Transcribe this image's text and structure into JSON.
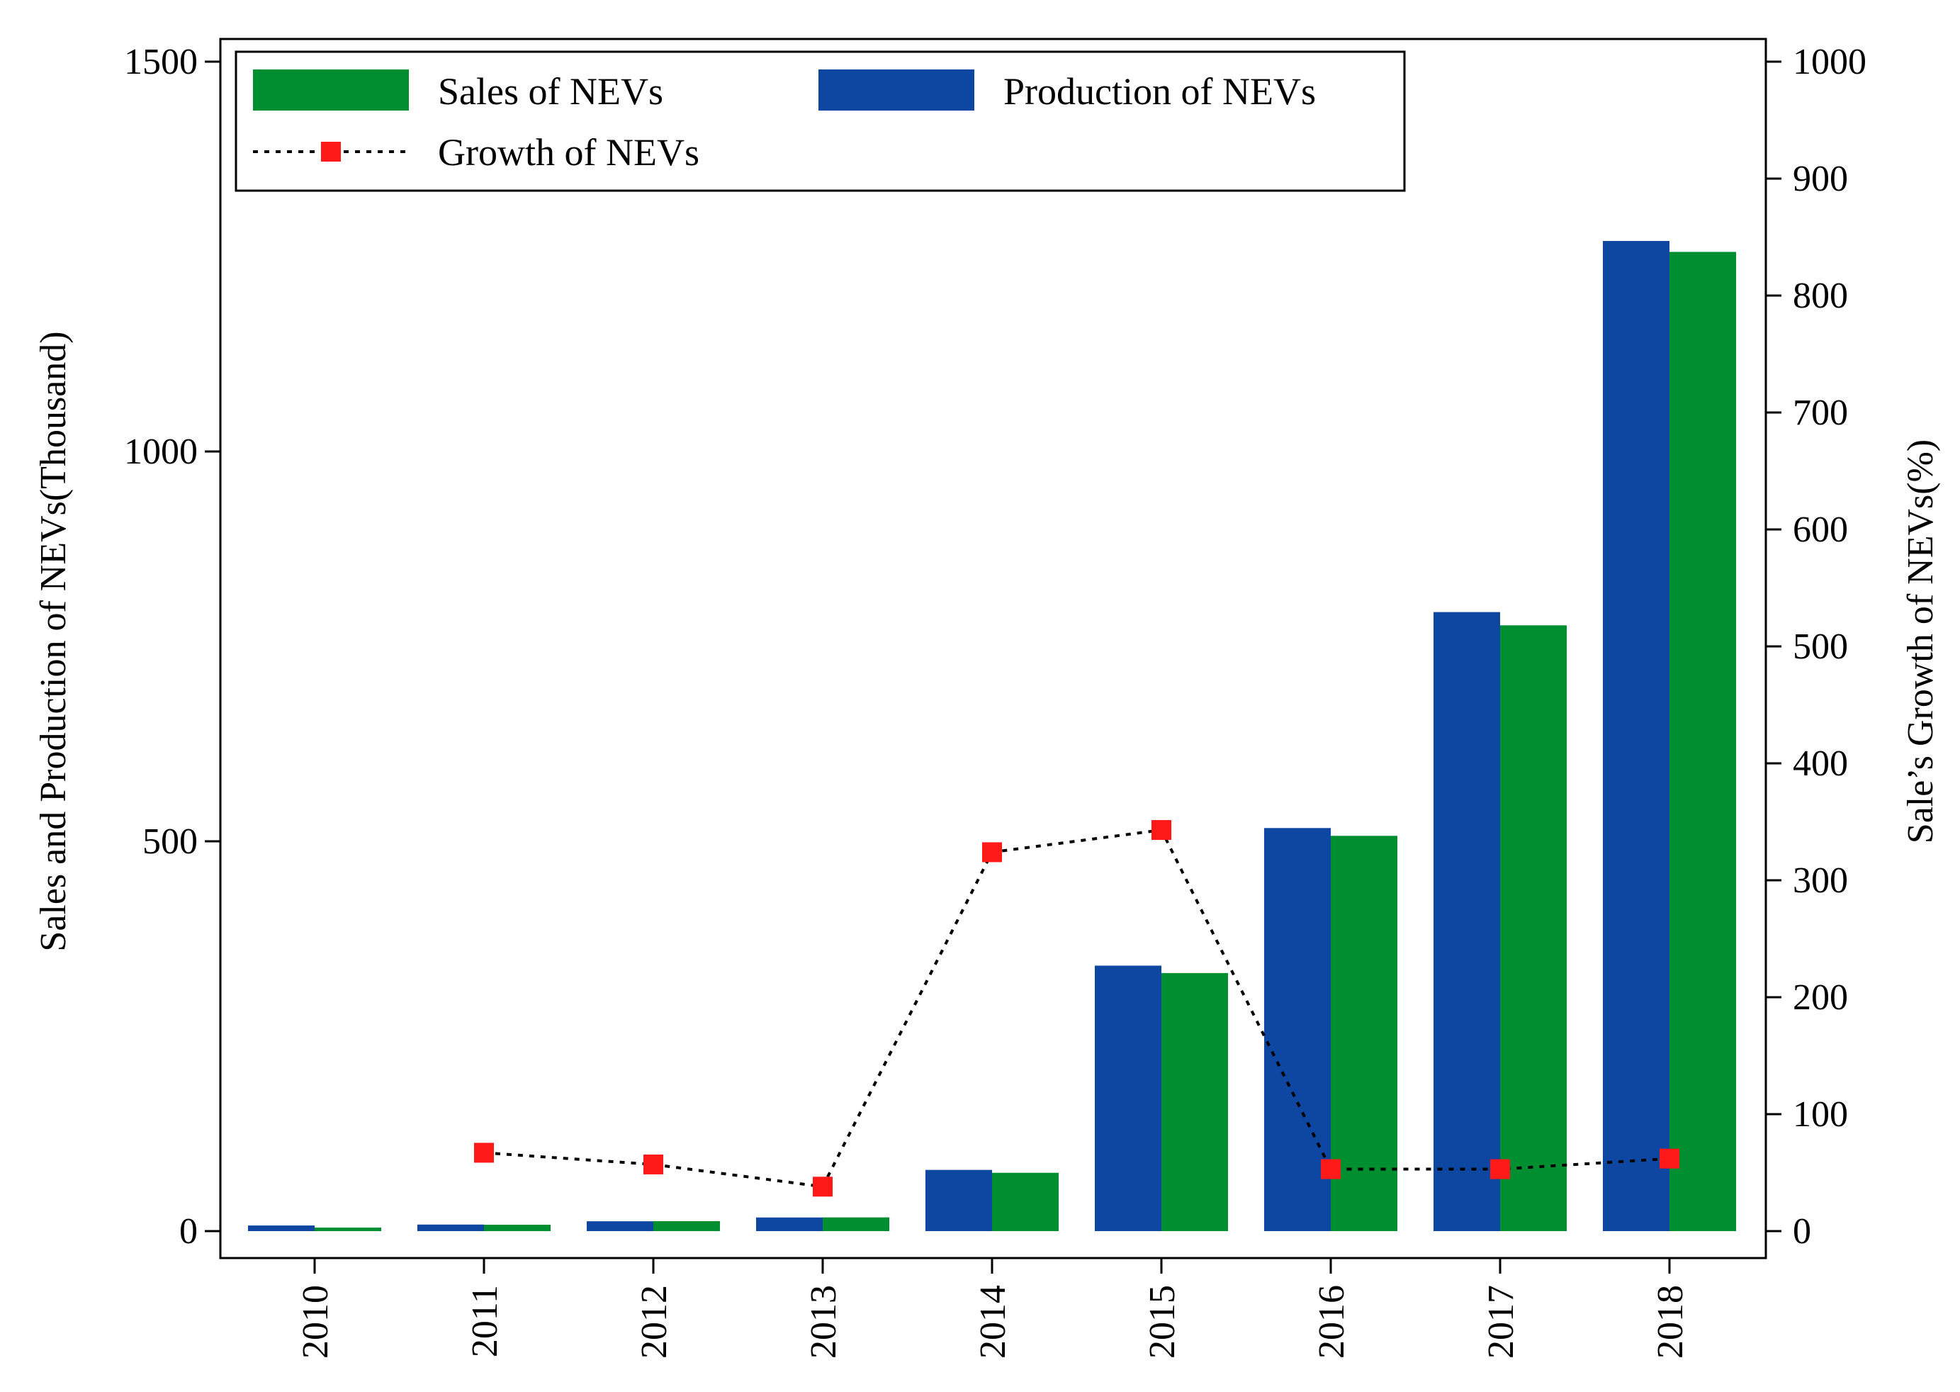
{
  "chart_data": {
    "type": "bar",
    "categories": [
      "2010",
      "2011",
      "2012",
      "2013",
      "2014",
      "2015",
      "2016",
      "2017",
      "2018"
    ],
    "series": [
      {
        "name": "Production of NEVs",
        "type": "bar",
        "axis": "left",
        "color": "#0d47a1",
        "values": [
          7.2,
          8.4,
          12.6,
          17.5,
          78.5,
          340.5,
          517,
          794,
          1270
        ]
      },
      {
        "name": "Sales of NEVs",
        "type": "bar",
        "axis": "left",
        "color": "#008f30",
        "values": [
          4.5,
          8.2,
          12.8,
          17.6,
          74.8,
          331,
          507,
          777,
          1256
        ]
      },
      {
        "name": "Growth of NEVs",
        "type": "line",
        "axis": "right",
        "color": "#ff1a1a",
        "line_style": "dotted",
        "line_color": "#000000",
        "marker": "square",
        "x": [
          "2011",
          "2012",
          "2013",
          "2014",
          "2015",
          "2016",
          "2017",
          "2018"
        ],
        "values": [
          67,
          57,
          38,
          324,
          343,
          53,
          53,
          62
        ]
      }
    ],
    "ylabel": "Sales and Production of NEVs(Thousand)",
    "y2label": "Sale’s Growth of NEVs(%)",
    "ylim": [
      0,
      1500
    ],
    "y2lim": [
      0,
      1000
    ],
    "yticks": [
      "0",
      "500",
      "1000",
      "1500"
    ],
    "y2ticks": [
      "0",
      "100",
      "200",
      "300",
      "400",
      "500",
      "600",
      "700",
      "800",
      "900",
      "1000"
    ],
    "grid": false,
    "legend": {
      "placement": "top-left",
      "entries": [
        {
          "label": "Sales of NEVs",
          "type": "bar",
          "color": "#008f30"
        },
        {
          "label": "Production of NEVs",
          "type": "bar",
          "color": "#0d47a1"
        },
        {
          "label": "Growth of NEVs",
          "type": "line",
          "color": "#ff1a1a"
        }
      ]
    }
  }
}
